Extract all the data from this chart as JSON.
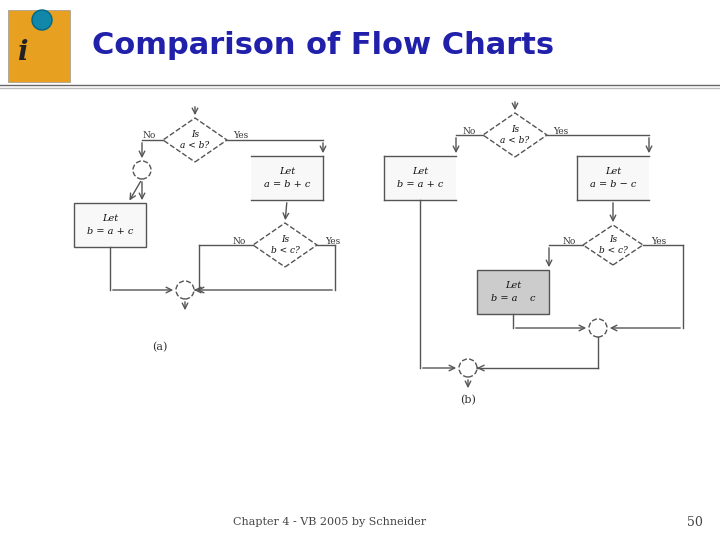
{
  "title": "Comparison of Flow Charts",
  "title_color": "#2020aa",
  "title_fontsize": 22,
  "footer_text": "Chapter 4 - VB 2005 by Schneider",
  "footer_page": "50",
  "bg_color": "#ffffff",
  "lc": "#555555",
  "fc_white": "#ffffff",
  "fc_box_a": "#f0f0f0",
  "fc_box_b": "#cccccc",
  "logo_color": "#e8a020",
  "sep_color": "#888888"
}
